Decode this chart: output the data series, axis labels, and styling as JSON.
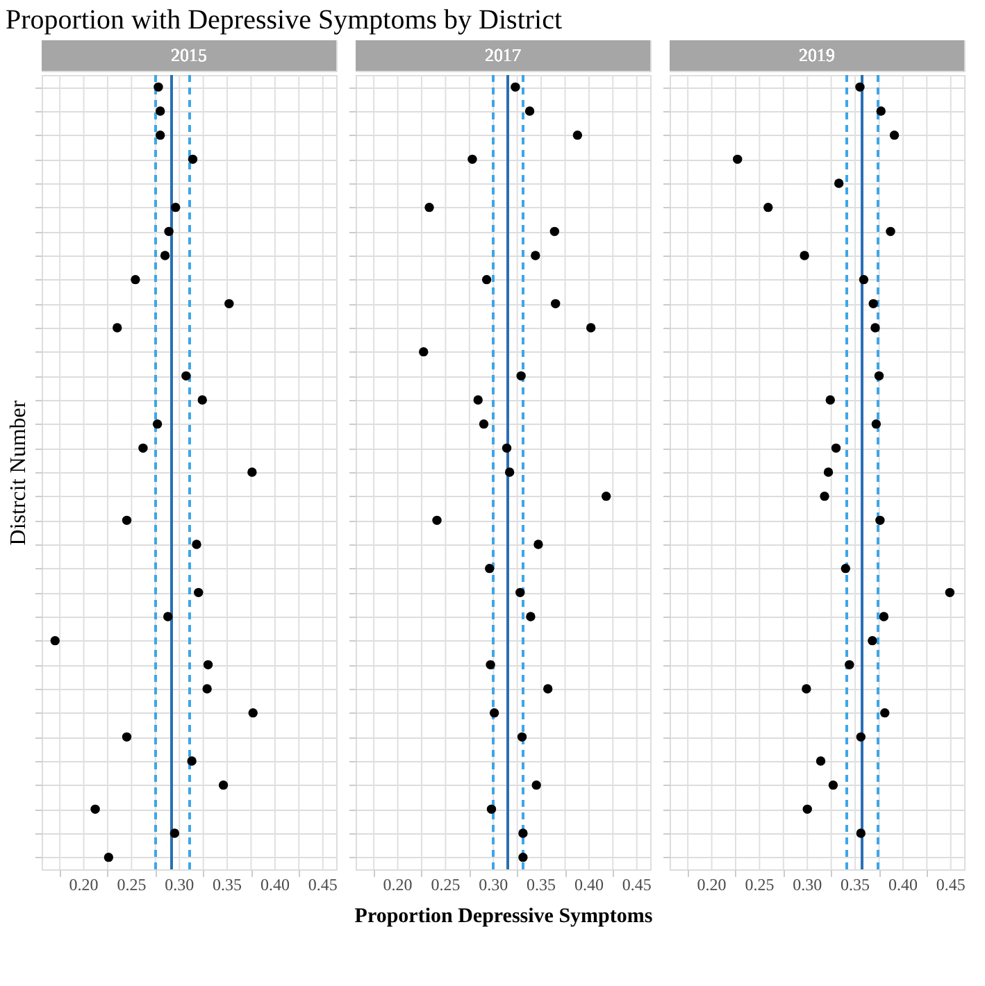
{
  "chart_data": [
    {
      "type": "scatter",
      "title": "Proportion with Depressive Symptoms by District",
      "subtitle": "2015",
      "ylabel": "Distrcit Number",
      "categories": [
        null,
        null,
        null,
        null,
        null,
        null,
        null,
        null,
        null,
        null,
        null,
        null,
        null,
        null,
        null,
        null,
        null,
        null,
        null,
        null,
        null,
        null,
        null,
        null,
        null,
        null,
        null,
        null,
        null,
        null,
        null,
        null,
        null
      ],
      "series": [
        {
          "color": "#000000",
          "values": [
            0.278,
            0.28,
            0.28,
            0.314,
            null,
            0.296,
            0.289,
            0.285,
            0.254,
            0.352,
            0.235,
            null,
            0.307,
            0.324,
            0.277,
            0.262,
            0.376,
            null,
            0.245,
            0.318,
            null,
            0.32,
            0.288,
            0.17,
            0.33,
            0.329,
            0.377,
            0.245,
            0.313,
            0.346,
            0.212,
            0.295,
            0.226
          ]
        }
      ],
      "xlim": [
        0.156,
        0.464
      ],
      "xticks": [
        {
          "value": 0.175,
          "label": null
        },
        {
          "value": 0.2,
          "label": "0.20"
        },
        {
          "value": 0.225,
          "label": null
        },
        {
          "value": 0.25,
          "label": "0.25"
        },
        {
          "value": 0.275,
          "label": null
        },
        {
          "value": 0.3,
          "label": "0.30"
        },
        {
          "value": 0.325,
          "label": null
        },
        {
          "value": 0.35,
          "label": "0.35"
        },
        {
          "value": 0.375,
          "label": null
        },
        {
          "value": 0.4,
          "label": "0.40"
        },
        {
          "value": 0.425,
          "label": null
        },
        {
          "value": 0.45,
          "label": "0.45"
        }
      ],
      "ref_lines": [
        {
          "axis": "x",
          "value": 0.292,
          "color": "#2b6fb5",
          "line_style": "solid"
        },
        {
          "axis": "x",
          "value": 0.275,
          "color": "#3ea6e8",
          "line_style": "dashed"
        },
        {
          "axis": "x",
          "value": 0.311,
          "color": "#3ea6e8",
          "line_style": "dashed"
        }
      ],
      "grid": true,
      "marker": "circle",
      "legend": false,
      "tick_labels": "x",
      "orientation": "horizontal"
    },
    {
      "type": "scatter",
      "subtitle": "2017",
      "xlabel": "Proportion Depressive Symptoms",
      "categories": [
        null,
        null,
        null,
        null,
        null,
        null,
        null,
        null,
        null,
        null,
        null,
        null,
        null,
        null,
        null,
        null,
        null,
        null,
        null,
        null,
        null,
        null,
        null,
        null,
        null,
        null,
        null,
        null,
        null,
        null,
        null,
        null,
        null
      ],
      "series": [
        {
          "color": "#000000",
          "values": [
            0.323,
            0.338,
            0.388,
            0.278,
            null,
            0.233,
            0.364,
            0.344,
            0.293,
            0.365,
            0.402,
            0.227,
            0.329,
            0.284,
            0.29,
            0.314,
            0.317,
            0.418,
            0.241,
            0.347,
            0.296,
            0.328,
            0.339,
            null,
            0.297,
            0.357,
            0.301,
            0.33,
            null,
            0.345,
            0.298,
            0.331,
            0.331
          ]
        }
      ],
      "xlim": [
        0.156,
        0.464
      ],
      "xticks": [
        {
          "value": 0.175,
          "label": null
        },
        {
          "value": 0.2,
          "label": "0.20"
        },
        {
          "value": 0.225,
          "label": null
        },
        {
          "value": 0.25,
          "label": "0.25"
        },
        {
          "value": 0.275,
          "label": null
        },
        {
          "value": 0.3,
          "label": "0.30"
        },
        {
          "value": 0.325,
          "label": null
        },
        {
          "value": 0.35,
          "label": "0.35"
        },
        {
          "value": 0.375,
          "label": null
        },
        {
          "value": 0.4,
          "label": "0.40"
        },
        {
          "value": 0.425,
          "label": null
        },
        {
          "value": 0.45,
          "label": "0.45"
        }
      ],
      "ref_lines": [
        {
          "axis": "x",
          "value": 0.315,
          "color": "#2b6fb5",
          "line_style": "solid"
        },
        {
          "axis": "x",
          "value": 0.3,
          "color": "#3ea6e8",
          "line_style": "dashed"
        },
        {
          "axis": "x",
          "value": 0.331,
          "color": "#3ea6e8",
          "line_style": "dashed"
        }
      ],
      "grid": true,
      "marker": "circle",
      "legend": false,
      "tick_labels": "x",
      "orientation": "horizontal"
    },
    {
      "type": "scatter",
      "subtitle": "2019",
      "categories": [
        null,
        null,
        null,
        null,
        null,
        null,
        null,
        null,
        null,
        null,
        null,
        null,
        null,
        null,
        null,
        null,
        null,
        null,
        null,
        null,
        null,
        null,
        null,
        null,
        null,
        null,
        null,
        null,
        null,
        null,
        null,
        null,
        null
      ],
      "series": [
        {
          "color": "#000000",
          "values": [
            0.355,
            0.377,
            0.391,
            0.227,
            0.333,
            0.259,
            0.387,
            0.297,
            0.359,
            0.369,
            0.371,
            null,
            0.375,
            0.324,
            0.372,
            0.33,
            0.322,
            0.318,
            0.376,
            null,
            0.34,
            0.449,
            0.38,
            0.368,
            0.344,
            0.299,
            0.381,
            0.356,
            0.314,
            0.327,
            0.3,
            0.356,
            null
          ]
        }
      ],
      "xlim": [
        0.156,
        0.464
      ],
      "xticks": [
        {
          "value": 0.175,
          "label": null
        },
        {
          "value": 0.2,
          "label": "0.20"
        },
        {
          "value": 0.225,
          "label": null
        },
        {
          "value": 0.25,
          "label": "0.25"
        },
        {
          "value": 0.275,
          "label": null
        },
        {
          "value": 0.3,
          "label": "0.30"
        },
        {
          "value": 0.325,
          "label": null
        },
        {
          "value": 0.35,
          "label": "0.35"
        },
        {
          "value": 0.375,
          "label": null
        },
        {
          "value": 0.4,
          "label": "0.40"
        },
        {
          "value": 0.425,
          "label": null
        },
        {
          "value": 0.45,
          "label": "0.45"
        }
      ],
      "ref_lines": [
        {
          "axis": "x",
          "value": 0.357,
          "color": "#2b6fb5",
          "line_style": "solid"
        },
        {
          "axis": "x",
          "value": 0.341,
          "color": "#3ea6e8",
          "line_style": "dashed"
        },
        {
          "axis": "x",
          "value": 0.374,
          "color": "#3ea6e8",
          "line_style": "dashed"
        }
      ],
      "grid": true,
      "marker": "circle",
      "legend": false,
      "tick_labels": "x",
      "orientation": "horizontal"
    }
  ]
}
